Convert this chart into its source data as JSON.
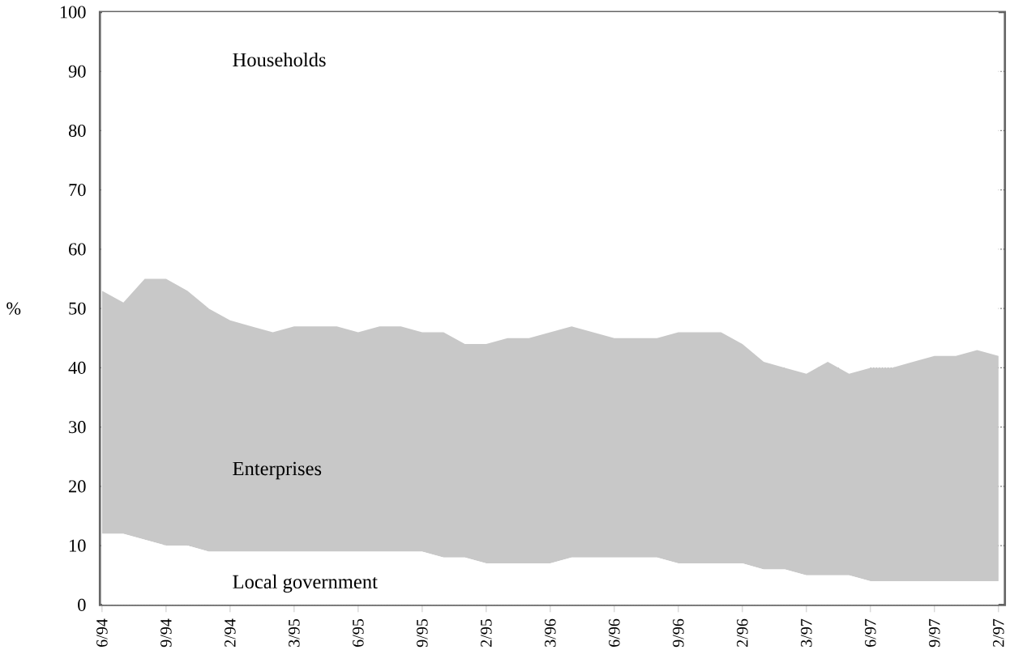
{
  "chart_data": {
    "type": "area",
    "stacked": true,
    "ylabel": "%",
    "categories": [
      "6/94",
      null,
      null,
      "9/94",
      null,
      null,
      "2/94",
      null,
      null,
      "3/95",
      null,
      null,
      "6/95",
      null,
      null,
      "9/95",
      null,
      null,
      "2/95",
      null,
      null,
      "3/96",
      null,
      null,
      "6/96",
      null,
      null,
      "9/96",
      null,
      null,
      "2/96",
      null,
      null,
      "3/97",
      null,
      null,
      "6/97",
      null,
      null,
      "9/97",
      null,
      null,
      "2/97"
    ],
    "series": [
      {
        "name": "Local government",
        "color": "#ffffff",
        "values": [
          12,
          12,
          11,
          10,
          10,
          9,
          9,
          9,
          9,
          9,
          9,
          9,
          9,
          9,
          9,
          9,
          8,
          8,
          7,
          7,
          7,
          7,
          8,
          8,
          8,
          8,
          8,
          7,
          7,
          7,
          7,
          6,
          6,
          5,
          5,
          5,
          4,
          4,
          4,
          4,
          4,
          4,
          4
        ]
      },
      {
        "name": "Enterprises",
        "color": "#c8c8c8",
        "values": [
          41,
          39,
          44,
          45,
          43,
          41,
          39,
          38,
          37,
          38,
          38,
          38,
          37,
          38,
          38,
          37,
          38,
          36,
          37,
          38,
          38,
          39,
          39,
          38,
          37,
          37,
          37,
          39,
          39,
          39,
          37,
          35,
          34,
          34,
          36,
          34,
          36,
          36,
          37,
          38,
          38,
          39,
          38
        ]
      },
      {
        "name": "Households",
        "color": "#ffffff",
        "values": [
          47,
          49,
          45,
          45,
          47,
          50,
          52,
          53,
          54,
          53,
          53,
          53,
          54,
          53,
          53,
          54,
          54,
          56,
          56,
          55,
          55,
          54,
          53,
          54,
          55,
          55,
          55,
          54,
          54,
          54,
          56,
          59,
          60,
          61,
          59,
          61,
          60,
          60,
          59,
          58,
          58,
          57,
          58
        ]
      }
    ],
    "ylim": [
      0,
      100
    ],
    "yticks": [
      0,
      10,
      20,
      30,
      40,
      50,
      60,
      70,
      80,
      90,
      100
    ],
    "grid": "y",
    "line_style": "dotted"
  }
}
